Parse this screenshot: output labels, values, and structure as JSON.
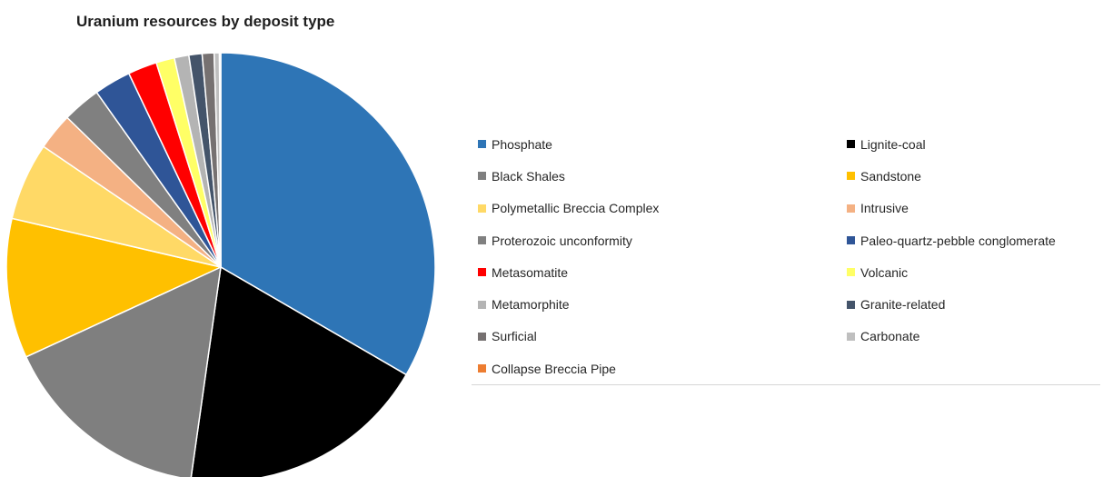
{
  "chart_data": {
    "type": "pie",
    "title": "Uranium resources by deposit type",
    "legend_placement": "right",
    "categories": [
      "Phosphate",
      "Lignite-coal",
      "Black Shales",
      "Sandstone",
      "Polymetallic Breccia Complex",
      "Intrusive",
      "Proterozoic unconformity",
      "Paleo-quartz-pebble conglomerate",
      "Metasomatite",
      "Volcanic",
      "Metamorphite",
      "Granite-related",
      "Surficial",
      "Carbonate",
      "Collapse Breccia Pipe"
    ],
    "values": [
      33.6,
      19.0,
      16.0,
      10.6,
      5.9,
      2.8,
      2.9,
      2.8,
      2.2,
      1.4,
      1.1,
      1.0,
      0.9,
      0.4,
      0.1
    ],
    "colors": [
      "#2e75b6",
      "#000000",
      "#7f7f7f",
      "#ffc000",
      "#ffd966",
      "#f4b183",
      "#808080",
      "#2f5597",
      "#ff0000",
      "#ffff66",
      "#b4b4b4",
      "#44546a",
      "#767171",
      "#bfbfbf",
      "#ed7d31"
    ],
    "unit": "percent (estimated)"
  }
}
